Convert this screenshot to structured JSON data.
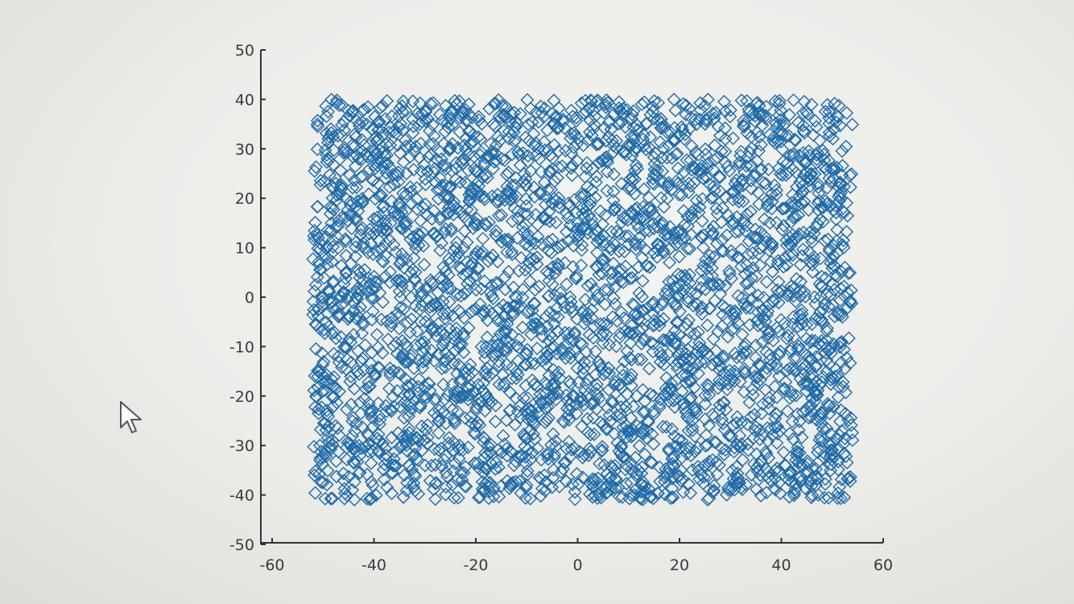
{
  "chart_data": {
    "type": "scatter",
    "title": "",
    "xlabel": "",
    "ylabel": "",
    "xlim": [
      -60,
      60
    ],
    "ylim": [
      -50,
      50
    ],
    "x_ticks": [
      "-60",
      "-40",
      "-20",
      "0",
      "20",
      "40",
      "60"
    ],
    "y_ticks": [
      "50",
      "40",
      "30",
      "20",
      "10",
      "0",
      "-10",
      "-20",
      "-30",
      "-40",
      "-50"
    ],
    "marker": "diamond",
    "grid": false,
    "legend": "none",
    "series": [
      {
        "color": "#1f6aa8",
        "distribution": "uniform",
        "x_range": [
          -52,
          54
        ],
        "y_range": [
          -41,
          40
        ],
        "approx_count": 3500
      }
    ]
  },
  "colors": {
    "marker": "#1f6aa8",
    "background": "#f2f2ef"
  },
  "cursor": {
    "icon": "mouse-pointer-icon"
  }
}
